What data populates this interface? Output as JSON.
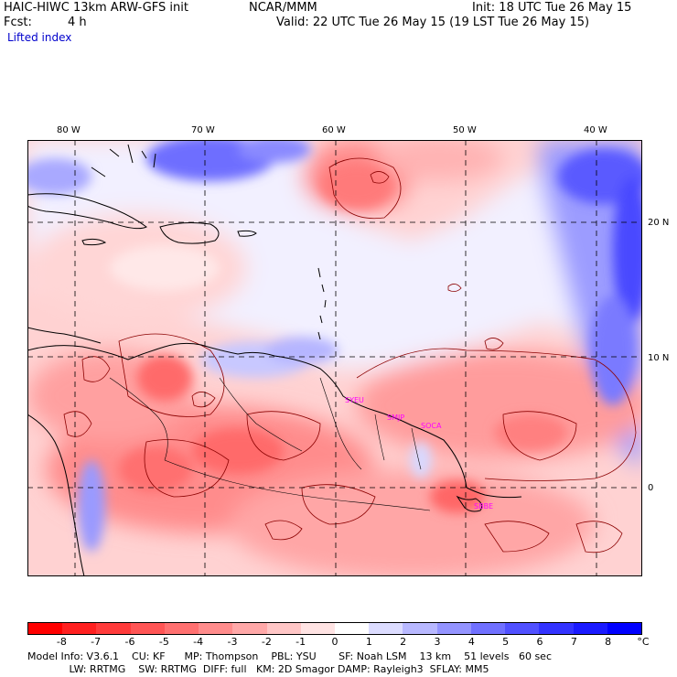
{
  "header": {
    "model": "HAIC-HIWC 13km ARW-GFS init",
    "org": "NCAR/MMM",
    "init": "Init: 18 UTC Tue 26 May 15",
    "fcst_label": "Fcst:",
    "fcst_value": "4 h",
    "valid": "Valid: 22 UTC Tue 26 May 15 (19 LST Tue 26 May 15)",
    "field": "Lifted index"
  },
  "map": {
    "lon_labels": [
      "80 W",
      "70 W",
      "60 W",
      "50 W",
      "40 W"
    ],
    "lat_labels": [
      "20 N",
      "10 N",
      "0"
    ],
    "stations": [
      "SYEU",
      "SMJP",
      "SOCA",
      "SBBE"
    ],
    "station_color": "#ff00ff"
  },
  "colorbar": {
    "labels": [
      "-8",
      "-7",
      "-6",
      "-5",
      "-4",
      "-3",
      "-2",
      "-1",
      "0",
      "1",
      "2",
      "3",
      "4",
      "5",
      "6",
      "7",
      "8"
    ],
    "unit": "°C",
    "colors": [
      "#ff0000",
      "#ff2020",
      "#ff3b3b",
      "#ff5555",
      "#ff7070",
      "#ff8c8c",
      "#ffa8a8",
      "#ffc6c6",
      "#ffe3e3",
      "#ffffff",
      "#dcdcff",
      "#b8b8ff",
      "#9494ff",
      "#7070ff",
      "#5050ff",
      "#3333ff",
      "#1a1aff",
      "#0000ff"
    ]
  },
  "footer": {
    "line1": "Model Info: V3.6.1    CU: KF      MP: Thompson    PBL: YSU       SF: Noah LSM    13 km    51 levels   60 sec",
    "line2": "             LW: RRTMG    SW: RRTMG  DIFF: full   KM: 2D Smagor DAMP: Rayleigh3  SFLAY: MM5"
  }
}
